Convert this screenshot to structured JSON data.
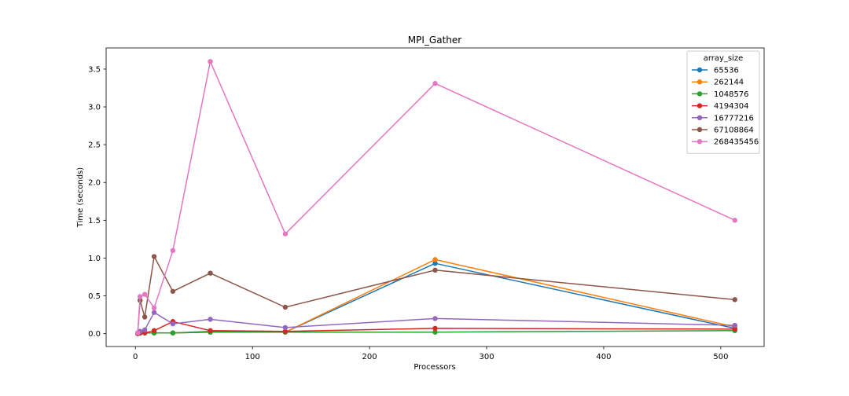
{
  "chart_data": {
    "type": "line",
    "title": "MPI_Gather",
    "xlabel": "Processors",
    "ylabel": "Time (seconds)",
    "xlim": [
      -25,
      537
    ],
    "ylim": [
      -0.17,
      3.78
    ],
    "xticks": [
      0,
      100,
      200,
      300,
      400,
      500
    ],
    "xtick_labels": [
      "0",
      "100",
      "200",
      "300",
      "400",
      "500"
    ],
    "yticks": [
      0.0,
      0.5,
      1.0,
      1.5,
      2.0,
      2.5,
      3.0,
      3.5
    ],
    "ytick_labels": [
      "0.0",
      "0.5",
      "1.0",
      "1.5",
      "2.0",
      "2.5",
      "3.0",
      "3.5"
    ],
    "grid": false,
    "legend_title": "array_size",
    "legend_position": "top-right",
    "x": [
      2,
      4,
      8,
      16,
      32,
      64,
      128,
      256,
      512
    ],
    "series": [
      {
        "name": "65536",
        "color": "#1f77b4",
        "values": [
          0.0,
          0.01,
          0.01,
          0.01,
          0.01,
          0.03,
          0.02,
          0.93,
          0.07
        ]
      },
      {
        "name": "262144",
        "color": "#ff7f0e",
        "values": [
          0.0,
          0.01,
          0.01,
          0.01,
          0.01,
          0.02,
          0.02,
          0.98,
          0.09
        ]
      },
      {
        "name": "1048576",
        "color": "#2ca02c",
        "values": [
          0.0,
          0.01,
          0.01,
          0.01,
          0.01,
          0.02,
          0.02,
          0.02,
          0.04
        ]
      },
      {
        "name": "4194304",
        "color": "#d62728",
        "values": [
          0.0,
          0.01,
          0.01,
          0.04,
          0.16,
          0.04,
          0.03,
          0.07,
          0.06
        ]
      },
      {
        "name": "16777216",
        "color": "#9467bd",
        "values": [
          0.01,
          0.03,
          0.05,
          0.28,
          0.13,
          0.19,
          0.08,
          0.2,
          0.11
        ]
      },
      {
        "name": "67108864",
        "color": "#8c564b",
        "values": [
          0.01,
          0.44,
          0.22,
          1.02,
          0.56,
          0.8,
          0.35,
          0.84,
          0.45
        ]
      },
      {
        "name": "268435456",
        "color": "#e377c2",
        "values": [
          0.01,
          0.49,
          0.52,
          0.34,
          1.1,
          3.6,
          1.32,
          3.31,
          1.5
        ]
      }
    ]
  }
}
